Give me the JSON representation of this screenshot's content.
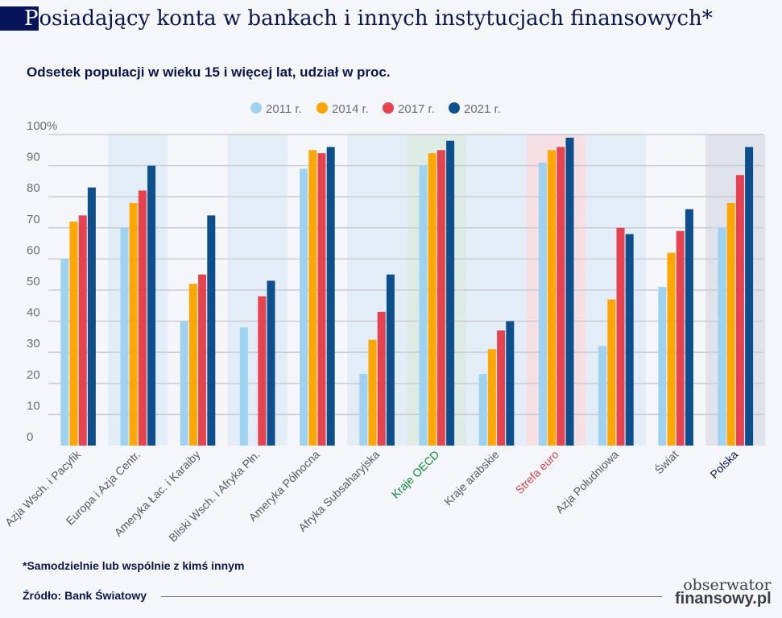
{
  "title_first_letter": "P",
  "title_rest": "osiadający konta w bankach i innych instytucjach finansowych*",
  "footnote": "*Samodzielnie lub wspólnie z kimś innym",
  "source": "Źródło: Bank Światowy",
  "logo": {
    "line1": "obserwator",
    "line2": "finansowy.pl"
  },
  "chart_data": {
    "type": "bar",
    "title": "Posiadający konta w bankach i innych instytucjach finansowych*",
    "subtitle": "Odsetek populacji w wieku 15 i więcej lat, udział w proc.",
    "categories": [
      "Azja Wsch. i Pacyfik",
      "Europa i Azja Centr.",
      "Ameryka Łac. i Karaiby",
      "Bliski Wsch. i Afryka Płn.",
      "Ameryka Północna",
      "Afryka Subsaharyjska",
      "Kraje OECD",
      "Kraje arabskie",
      "Strefa euro",
      "Azja Południowa",
      "Świat",
      "Polska"
    ],
    "category_colors": [
      "#555a66",
      "#555a66",
      "#555a66",
      "#555a66",
      "#555a66",
      "#555a66",
      "#0a8a3a",
      "#555a66",
      "#e0424e",
      "#555a66",
      "#555a66",
      "#0b1650"
    ],
    "highlight_bands": {
      "Kraje OECD": "#dcebe4",
      "Strefa euro": "#f6dfe3",
      "Polska": "#e1e3ec"
    },
    "series": [
      {
        "name": "2011 r.",
        "color": "#9fd2f0",
        "values": [
          60,
          70,
          40,
          38,
          89,
          23,
          90,
          23,
          91,
          32,
          51,
          70
        ]
      },
      {
        "name": "2014 r.",
        "color": "#ffa602",
        "values": [
          72,
          78,
          52,
          null,
          95,
          34,
          94,
          31,
          95,
          47,
          62,
          78
        ]
      },
      {
        "name": "2017 r.",
        "color": "#e5434f",
        "values": [
          74,
          82,
          55,
          48,
          94,
          43,
          95,
          37,
          96,
          70,
          69,
          87
        ]
      },
      {
        "name": "2021 r.",
        "color": "#0c4f8c",
        "values": [
          83,
          90,
          74,
          53,
          96,
          55,
          98,
          40,
          99,
          68,
          76,
          96
        ]
      }
    ],
    "yticks": [
      "0",
      "10",
      "20",
      "30",
      "40",
      "50",
      "60",
      "70",
      "80",
      "90",
      "100%"
    ],
    "ylim": [
      0,
      100
    ],
    "legend": "top-center",
    "grid": true
  }
}
